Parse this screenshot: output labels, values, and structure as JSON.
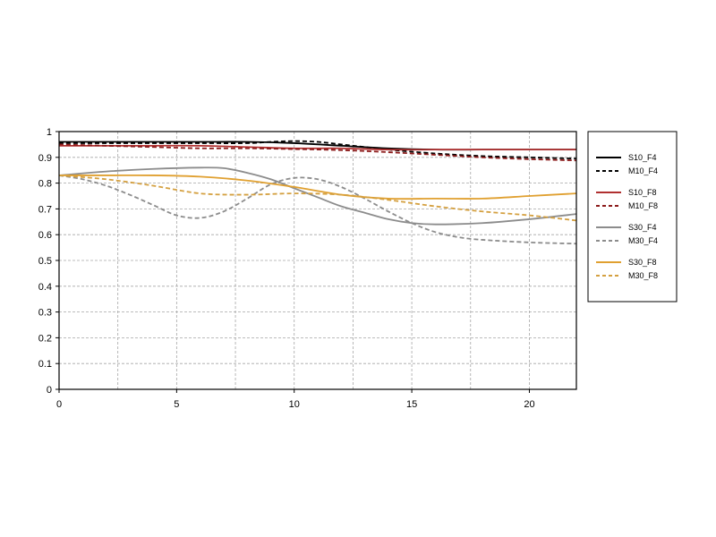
{
  "chart_data": {
    "type": "line",
    "title": "",
    "xlabel": "",
    "ylabel": "",
    "xlim": [
      0,
      22
    ],
    "ylim": [
      0,
      1
    ],
    "xticks": [
      0,
      5,
      10,
      15,
      20
    ],
    "xtick_labels": [
      "0",
      "5",
      "10",
      "15",
      "20"
    ],
    "yticks": [
      0,
      0.1,
      0.2,
      0.3,
      0.4,
      0.5,
      0.6,
      0.7,
      0.8,
      0.9,
      1
    ],
    "ytick_labels": [
      "0",
      "0.1",
      "0.2",
      "0.3",
      "0.4",
      "0.5",
      "0.6",
      "0.7",
      "0.8",
      "0.9",
      "1"
    ],
    "grid": true,
    "legend_position": "right",
    "series": [
      {
        "name": "S10_F4",
        "color": "#000000",
        "dash": "solid",
        "x": [
          0,
          2,
          4,
          6,
          8,
          10,
          12,
          14,
          16,
          18,
          20,
          22
        ],
        "y": [
          0.96,
          0.96,
          0.96,
          0.96,
          0.96,
          0.955,
          0.945,
          0.935,
          0.93,
          0.93,
          0.93,
          0.93
        ]
      },
      {
        "name": "M10_F4",
        "color": "#000000",
        "dash": "dashed",
        "x": [
          0,
          2,
          4,
          6,
          8,
          9,
          10,
          11,
          12,
          13,
          14,
          16,
          18,
          20,
          22
        ],
        "y": [
          0.955,
          0.955,
          0.955,
          0.955,
          0.955,
          0.96,
          0.963,
          0.96,
          0.95,
          0.94,
          0.93,
          0.915,
          0.905,
          0.9,
          0.895
        ]
      },
      {
        "name": "S10_F8",
        "color": "#b03030",
        "dash": "solid",
        "x": [
          0,
          2,
          4,
          6,
          8,
          10,
          12,
          14,
          16,
          18,
          20,
          22
        ],
        "y": [
          0.945,
          0.945,
          0.945,
          0.945,
          0.94,
          0.935,
          0.935,
          0.93,
          0.93,
          0.93,
          0.93,
          0.93
        ]
      },
      {
        "name": "M10_F8",
        "color": "#8b1a1a",
        "dash": "dashed",
        "x": [
          0,
          2,
          4,
          6,
          8,
          10,
          12,
          14,
          16,
          18,
          20,
          22
        ],
        "y": [
          0.95,
          0.945,
          0.94,
          0.935,
          0.935,
          0.932,
          0.928,
          0.92,
          0.91,
          0.9,
          0.893,
          0.888
        ]
      },
      {
        "name": "S30_F4",
        "color": "#8c8c8c",
        "dash": "solid",
        "x": [
          0,
          2,
          4,
          6,
          7,
          8,
          9,
          10,
          11,
          12,
          13,
          14,
          15,
          16,
          18,
          20,
          22
        ],
        "y": [
          0.83,
          0.845,
          0.855,
          0.86,
          0.858,
          0.84,
          0.815,
          0.78,
          0.745,
          0.71,
          0.685,
          0.66,
          0.645,
          0.64,
          0.645,
          0.66,
          0.68
        ]
      },
      {
        "name": "M30_F4",
        "color": "#8c8c8c",
        "dash": "dashed",
        "x": [
          0,
          1,
          2,
          3,
          4,
          5,
          6,
          7,
          8,
          9,
          10,
          11,
          12,
          13,
          14,
          15,
          16,
          17,
          18,
          20,
          22
        ],
        "y": [
          0.83,
          0.815,
          0.79,
          0.755,
          0.715,
          0.675,
          0.665,
          0.69,
          0.74,
          0.795,
          0.82,
          0.815,
          0.785,
          0.74,
          0.69,
          0.645,
          0.61,
          0.59,
          0.58,
          0.57,
          0.565
        ]
      },
      {
        "name": "S30_F8",
        "color": "#e0a030",
        "dash": "solid",
        "x": [
          0,
          2,
          4,
          6,
          8,
          10,
          12,
          14,
          16,
          18,
          20,
          22
        ],
        "y": [
          0.83,
          0.83,
          0.83,
          0.825,
          0.81,
          0.785,
          0.755,
          0.74,
          0.74,
          0.74,
          0.75,
          0.76
        ]
      },
      {
        "name": "M30_F8",
        "color": "#d4a040",
        "dash": "dashed",
        "x": [
          0,
          2,
          4,
          6,
          8,
          10,
          12,
          14,
          16,
          18,
          20,
          22
        ],
        "y": [
          0.83,
          0.815,
          0.79,
          0.76,
          0.755,
          0.76,
          0.755,
          0.735,
          0.71,
          0.69,
          0.675,
          0.655
        ]
      }
    ]
  }
}
